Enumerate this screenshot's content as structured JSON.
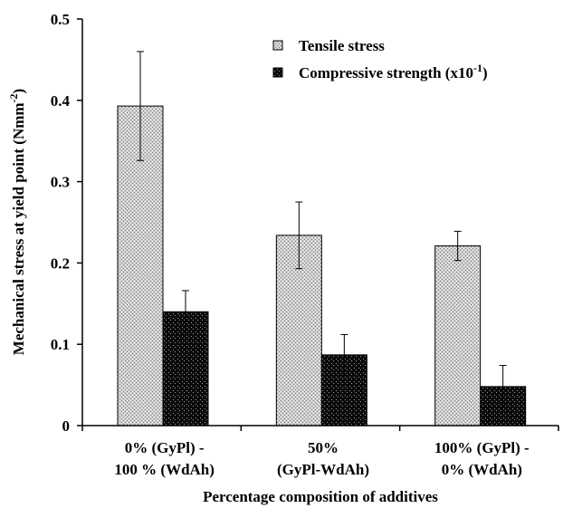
{
  "chart_data": {
    "type": "bar",
    "xlabel": "Percentage composition of additives",
    "ylabel": "Mechanical stress at yield point (Nmm",
    "ylabel_sup": "-2",
    "ylabel_close": ")",
    "ylim": [
      0,
      0.5
    ],
    "yticks": [
      "0",
      "0.1",
      "0.2",
      "0.3",
      "0.4",
      "0.5"
    ],
    "grid": false,
    "legend_position": "top-right",
    "categories": [
      {
        "line1": "0% (GyPl)  -",
        "line2": "100 % (WdAh)"
      },
      {
        "line1": "50%",
        "line2": "(GyPl-WdAh)"
      },
      {
        "line1": "100% (GyPl) -",
        "line2": "0% (WdAh)"
      }
    ],
    "series": [
      {
        "name": "Tensile stress",
        "pattern": "light-gray-crosshatch",
        "values": [
          0.393,
          0.234,
          0.221
        ],
        "error": [
          0.067,
          0.041,
          0.018
        ]
      },
      {
        "name": "Compressive strength  (x10",
        "name_sup": "-1",
        "name_close": ")",
        "pattern": "black-dotted",
        "values": [
          0.14,
          0.087,
          0.048
        ],
        "error": [
          0.026,
          0.025,
          0.026
        ]
      }
    ]
  }
}
